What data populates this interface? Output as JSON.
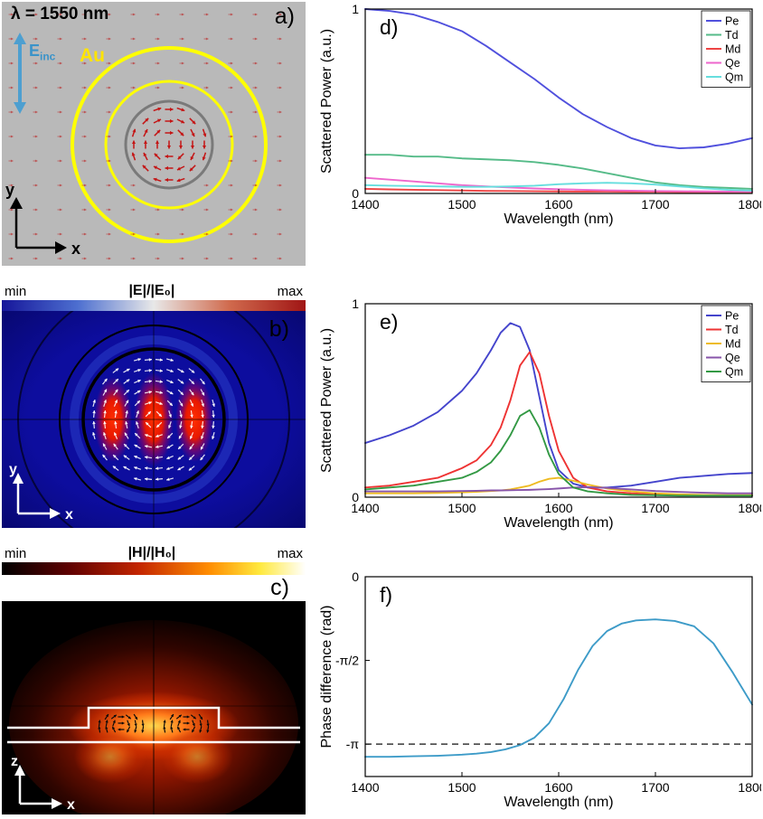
{
  "figure": {
    "panel_a": {
      "label": "a)",
      "annotation_wavelength": "λ = 1550 nm",
      "annotation_material": "Au",
      "incident_field": {
        "symbol": "E",
        "subscript": "inc"
      },
      "axes": {
        "x": "x",
        "y": "y"
      }
    },
    "panel_b": {
      "label": "b)",
      "colorbar": {
        "min": "min",
        "title": "|E|/|E₀|",
        "max": "max"
      },
      "axes": {
        "x": "x",
        "y": "y"
      }
    },
    "panel_c": {
      "label": "c)",
      "colorbar": {
        "min": "min",
        "title": "|H|/|H₀|",
        "max": "max"
      },
      "axes": {
        "x": "x",
        "z": "z"
      }
    }
  },
  "chart_data": [
    {
      "id": "d",
      "type": "line",
      "panel_label": "d)",
      "xlabel": "Wavelength (nm)",
      "ylabel": "Scattered Power (a.u.)",
      "xlim": [
        1400,
        1800
      ],
      "ylim": [
        0,
        1
      ],
      "xticks": [
        1400,
        1500,
        1600,
        1700,
        1800
      ],
      "yticks": [
        0,
        1
      ],
      "legend_position": "top-right",
      "grid": false,
      "x": [
        1400,
        1425,
        1450,
        1475,
        1500,
        1525,
        1550,
        1575,
        1600,
        1625,
        1650,
        1675,
        1700,
        1725,
        1750,
        1775,
        1800
      ],
      "series": [
        {
          "name": "Pe",
          "color": "#5050dd",
          "values": [
            1.0,
            0.99,
            0.97,
            0.93,
            0.88,
            0.8,
            0.71,
            0.62,
            0.52,
            0.43,
            0.36,
            0.3,
            0.26,
            0.245,
            0.25,
            0.27,
            0.3
          ]
        },
        {
          "name": "Td",
          "color": "#55bb88",
          "values": [
            0.21,
            0.21,
            0.2,
            0.2,
            0.19,
            0.185,
            0.18,
            0.17,
            0.155,
            0.135,
            0.11,
            0.085,
            0.06,
            0.045,
            0.035,
            0.03,
            0.025
          ]
        },
        {
          "name": "Md",
          "color": "#ee4444",
          "values": [
            0.025,
            0.022,
            0.02,
            0.018,
            0.016,
            0.014,
            0.013,
            0.012,
            0.011,
            0.01,
            0.01,
            0.009,
            0.009,
            0.008,
            0.008,
            0.008,
            0.008
          ]
        },
        {
          "name": "Qe",
          "color": "#ee66cc",
          "values": [
            0.085,
            0.075,
            0.065,
            0.055,
            0.045,
            0.038,
            0.032,
            0.027,
            0.023,
            0.02,
            0.017,
            0.015,
            0.013,
            0.012,
            0.011,
            0.01,
            0.01
          ]
        },
        {
          "name": "Qm",
          "color": "#66dede",
          "values": [
            0.045,
            0.042,
            0.04,
            0.038,
            0.036,
            0.036,
            0.038,
            0.042,
            0.05,
            0.055,
            0.058,
            0.055,
            0.048,
            0.038,
            0.028,
            0.02,
            0.015
          ]
        }
      ]
    },
    {
      "id": "e",
      "type": "line",
      "panel_label": "e)",
      "xlabel": "Wavelength (nm)",
      "ylabel": "Scattered Power (a.u.)",
      "xlim": [
        1400,
        1800
      ],
      "ylim": [
        0,
        1
      ],
      "xticks": [
        1400,
        1500,
        1600,
        1700,
        1800
      ],
      "yticks": [
        0,
        1
      ],
      "legend_position": "top-right",
      "grid": false,
      "x": [
        1400,
        1425,
        1450,
        1475,
        1500,
        1515,
        1530,
        1540,
        1550,
        1560,
        1570,
        1580,
        1590,
        1600,
        1615,
        1630,
        1650,
        1675,
        1700,
        1725,
        1750,
        1775,
        1800
      ],
      "series": [
        {
          "name": "Pe",
          "color": "#4444cc",
          "values": [
            0.28,
            0.32,
            0.37,
            0.44,
            0.55,
            0.64,
            0.76,
            0.85,
            0.9,
            0.88,
            0.76,
            0.52,
            0.28,
            0.14,
            0.07,
            0.05,
            0.05,
            0.06,
            0.08,
            0.1,
            0.11,
            0.12,
            0.125
          ]
        },
        {
          "name": "Td",
          "color": "#ee3333",
          "values": [
            0.05,
            0.06,
            0.08,
            0.1,
            0.15,
            0.19,
            0.27,
            0.36,
            0.5,
            0.68,
            0.75,
            0.64,
            0.42,
            0.24,
            0.1,
            0.05,
            0.03,
            0.02,
            0.015,
            0.012,
            0.01,
            0.01,
            0.01
          ]
        },
        {
          "name": "Md",
          "color": "#eebb22",
          "values": [
            0.02,
            0.02,
            0.02,
            0.022,
            0.025,
            0.028,
            0.032,
            0.035,
            0.04,
            0.05,
            0.06,
            0.08,
            0.095,
            0.1,
            0.085,
            0.065,
            0.045,
            0.03,
            0.02,
            0.015,
            0.012,
            0.01,
            0.01
          ]
        },
        {
          "name": "Qe",
          "color": "#8855aa",
          "values": [
            0.03,
            0.03,
            0.03,
            0.03,
            0.032,
            0.033,
            0.035,
            0.035,
            0.036,
            0.037,
            0.038,
            0.04,
            0.042,
            0.045,
            0.05,
            0.052,
            0.048,
            0.04,
            0.032,
            0.027,
            0.023,
            0.02,
            0.02
          ]
        },
        {
          "name": "Qm",
          "color": "#339944",
          "values": [
            0.04,
            0.05,
            0.06,
            0.08,
            0.1,
            0.13,
            0.18,
            0.24,
            0.32,
            0.42,
            0.45,
            0.36,
            0.22,
            0.12,
            0.05,
            0.03,
            0.02,
            0.012,
            0.01,
            0.008,
            0.008,
            0.008,
            0.008
          ]
        }
      ]
    },
    {
      "id": "f",
      "type": "line",
      "panel_label": "f)",
      "xlabel": "Wavelength (nm)",
      "ylabel": "Phase difference (rad)",
      "xlim": [
        1400,
        1800
      ],
      "ylim": [
        -3.75,
        0
      ],
      "xticks": [
        1400,
        1500,
        1600,
        1700,
        1800
      ],
      "ytick_values": [
        0,
        -1.5708,
        -3.1416
      ],
      "ytick_labels": [
        "0",
        "-π/2",
        "-π"
      ],
      "dashed_line_y": -3.1416,
      "legend_position": "none",
      "grid": false,
      "x": [
        1400,
        1425,
        1450,
        1475,
        1500,
        1515,
        1530,
        1545,
        1560,
        1575,
        1590,
        1605,
        1620,
        1635,
        1650,
        1665,
        1680,
        1700,
        1720,
        1740,
        1760,
        1780,
        1800
      ],
      "series": [
        {
          "name": "phase",
          "color": "#3d9bc8",
          "values": [
            -3.38,
            -3.38,
            -3.37,
            -3.36,
            -3.34,
            -3.32,
            -3.29,
            -3.24,
            -3.16,
            -3.02,
            -2.75,
            -2.3,
            -1.75,
            -1.3,
            -1.02,
            -0.88,
            -0.82,
            -0.8,
            -0.83,
            -0.93,
            -1.25,
            -1.8,
            -2.4
          ]
        }
      ]
    }
  ]
}
